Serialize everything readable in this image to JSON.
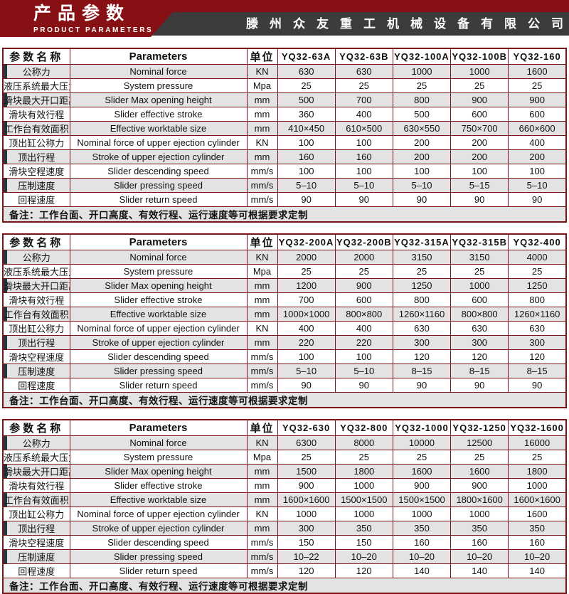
{
  "header": {
    "title_cn": "产品参数",
    "title_en": "PRODUCT PARAMETERS",
    "company": "滕州众友重工机械设备有限公司"
  },
  "labels": {
    "param_name": "参数名称",
    "parameters": "Parameters",
    "unit": "单位"
  },
  "row_defs": [
    {
      "cn": "公称力",
      "en": "Nominal force",
      "unit": "KN"
    },
    {
      "cn": "液压系统最大压力",
      "en": "System pressure",
      "unit": "Mpa"
    },
    {
      "cn": "滑块最大开口距离",
      "en": "Slider Max opening height",
      "unit": "mm"
    },
    {
      "cn": "滑块有效行程",
      "en": "Slider effective stroke",
      "unit": "mm"
    },
    {
      "cn": "工作台有效面积",
      "en": "Effective worktable size",
      "unit": "mm"
    },
    {
      "cn": "顶出缸公称力",
      "en": "Nominal force of upper ejection cylinder",
      "unit": "KN"
    },
    {
      "cn": "顶出行程",
      "en": "Stroke of upper ejection cylinder",
      "unit": "mm"
    },
    {
      "cn": "滑块空程速度",
      "en": "Slider descending speed",
      "unit": "mm/s"
    },
    {
      "cn": "压制速度",
      "en": "Slider pressing speed",
      "unit": "mm/s"
    },
    {
      "cn": "回程速度",
      "en": "Slider return speed",
      "unit": "mm/s"
    }
  ],
  "note": "备注：工作台面、开口高度、有效行程、运行速度等可根据要求定制",
  "tables": [
    {
      "models": [
        "YQ32-63A",
        "YQ32-63B",
        "YQ32-100A",
        "YQ32-100B",
        "YQ32-160"
      ],
      "values": [
        [
          "630",
          "630",
          "1000",
          "1000",
          "1600"
        ],
        [
          "25",
          "25",
          "25",
          "25",
          "25"
        ],
        [
          "500",
          "700",
          "800",
          "900",
          "900"
        ],
        [
          "360",
          "400",
          "500",
          "600",
          "600"
        ],
        [
          "410×450",
          "610×500",
          "630×550",
          "750×700",
          "660×600"
        ],
        [
          "100",
          "100",
          "200",
          "200",
          "400"
        ],
        [
          "160",
          "160",
          "200",
          "200",
          "200"
        ],
        [
          "100",
          "100",
          "100",
          "100",
          "100"
        ],
        [
          "5–10",
          "5–10",
          "5–10",
          "5–15",
          "5–10"
        ],
        [
          "90",
          "90",
          "90",
          "90",
          "90"
        ]
      ]
    },
    {
      "models": [
        "YQ32-200A",
        "YQ32-200B",
        "YQ32-315A",
        "YQ32-315B",
        "YQ32-400"
      ],
      "values": [
        [
          "2000",
          "2000",
          "3150",
          "3150",
          "4000"
        ],
        [
          "25",
          "25",
          "25",
          "25",
          "25"
        ],
        [
          "1200",
          "900",
          "1250",
          "1000",
          "1250"
        ],
        [
          "700",
          "600",
          "800",
          "600",
          "800"
        ],
        [
          "1000×1000",
          "800×800",
          "1260×1160",
          "800×800",
          "1260×1160"
        ],
        [
          "400",
          "400",
          "630",
          "630",
          "630"
        ],
        [
          "220",
          "220",
          "300",
          "300",
          "300"
        ],
        [
          "100",
          "100",
          "120",
          "120",
          "120"
        ],
        [
          "5–10",
          "5–10",
          "8–15",
          "8–15",
          "8–15"
        ],
        [
          "90",
          "90",
          "90",
          "90",
          "90"
        ]
      ]
    },
    {
      "models": [
        "YQ32-630",
        "YQ32-800",
        "YQ32-1000",
        "YQ32-1250",
        "YQ32-1600"
      ],
      "values": [
        [
          "6300",
          "8000",
          "10000",
          "12500",
          "16000"
        ],
        [
          "25",
          "25",
          "25",
          "25",
          "25"
        ],
        [
          "1500",
          "1800",
          "1600",
          "1600",
          "1800"
        ],
        [
          "900",
          "1000",
          "900",
          "900",
          "1000"
        ],
        [
          "1600×1600",
          "1500×1500",
          "1500×1500",
          "1800×1600",
          "1600×1600"
        ],
        [
          "1000",
          "1000",
          "1000",
          "1000",
          "1600"
        ],
        [
          "300",
          "350",
          "350",
          "350",
          "350"
        ],
        [
          "150",
          "150",
          "160",
          "160",
          "160"
        ],
        [
          "10–22",
          "10–20",
          "10–20",
          "10–20",
          "10–20"
        ],
        [
          "120",
          "120",
          "140",
          "140",
          "140"
        ]
      ]
    }
  ],
  "colors": {
    "banner_red": "#871014",
    "band_gray": "#3c3c3c",
    "table_border": "#7c1315",
    "stripe_gray": "#e3e3e3",
    "stripe_accent": "#2c3440"
  }
}
